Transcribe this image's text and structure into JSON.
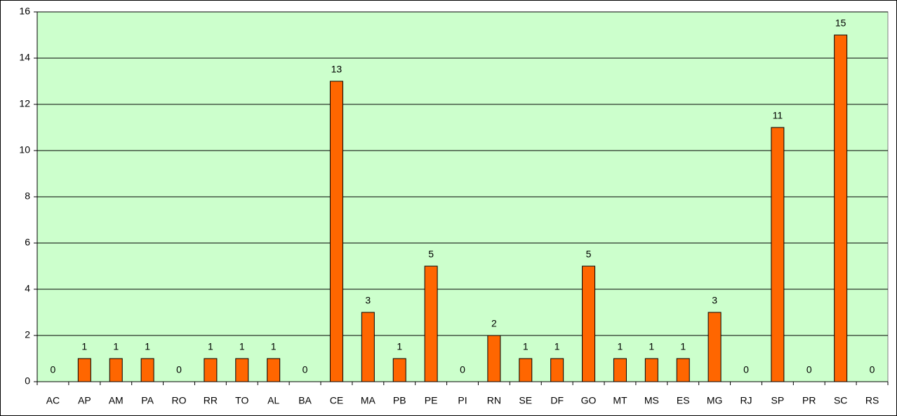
{
  "chart_data": {
    "type": "bar",
    "categories": [
      "AC",
      "AP",
      "AM",
      "PA",
      "RO",
      "RR",
      "TO",
      "AL",
      "BA",
      "CE",
      "MA",
      "PB",
      "PE",
      "PI",
      "RN",
      "SE",
      "DF",
      "GO",
      "MT",
      "MS",
      "ES",
      "MG",
      "RJ",
      "SP",
      "PR",
      "SC",
      "RS"
    ],
    "values": [
      0,
      1,
      1,
      1,
      0,
      1,
      1,
      1,
      0,
      13,
      3,
      1,
      5,
      0,
      2,
      1,
      1,
      5,
      1,
      1,
      1,
      3,
      0,
      11,
      0,
      15,
      0
    ],
    "color": "#ff6600",
    "plot_background": "#ccffcc",
    "ylim": [
      0,
      16
    ],
    "yticks": [
      0,
      2,
      4,
      6,
      8,
      10,
      12,
      14,
      16
    ],
    "grid": true
  }
}
